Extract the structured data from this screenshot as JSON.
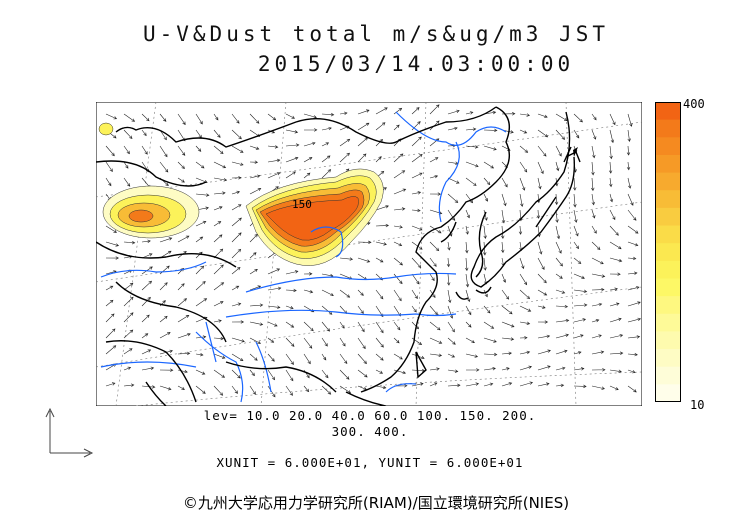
{
  "title": {
    "line1": "U-V&Dust total m/s&ug/m3 JST",
    "line2": "2015/03/14.03:00:00"
  },
  "contour_label": "150",
  "colorbar": {
    "max_label": "400",
    "min_label": "10",
    "colors": [
      "#f26414",
      "#f37a1a",
      "#f58a20",
      "#f69a26",
      "#f7aa2e",
      "#f8bc36",
      "#f9cc40",
      "#fadc48",
      "#fbe850",
      "#fcf25a",
      "#fdf866",
      "#fef880",
      "#fefa98",
      "#fefbae",
      "#fefcc4",
      "#fefdd8",
      "#fffeea"
    ]
  },
  "levels_text": {
    "line1": "lev= 10.0 20.0 40.0 60.0 100. 150. 200.",
    "line2": "300. 400."
  },
  "units_text": "XUNIT = 6.000E+01, YUNIT = 6.000E+01",
  "copyright": "©九州大学応用力学研究所(RIAM)/国立環境研究所(NIES)",
  "colors": {
    "coast": "#000000",
    "river": "#1a66ff",
    "grid": "#888888"
  }
}
